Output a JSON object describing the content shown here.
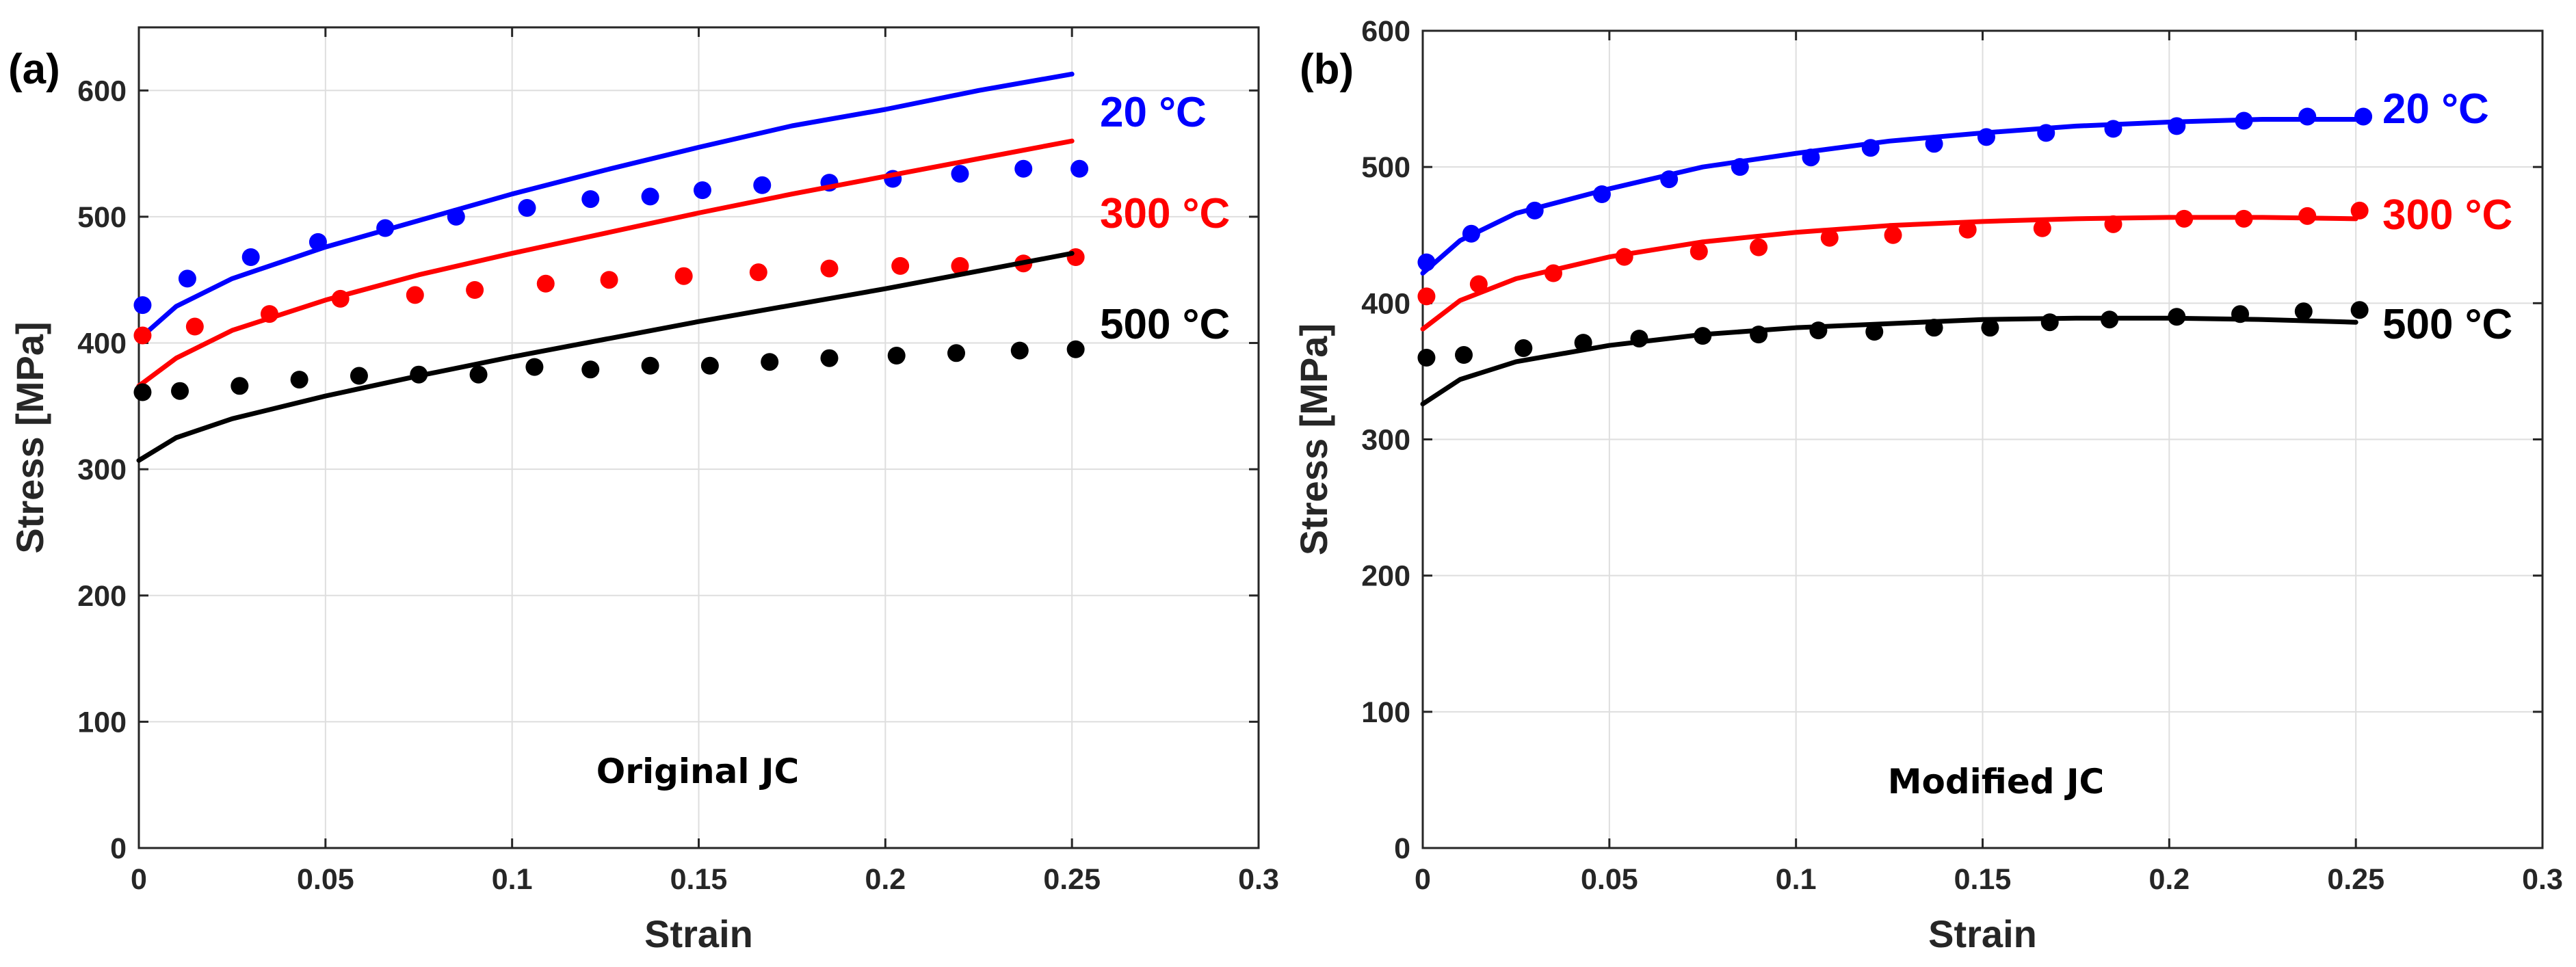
{
  "chart_data": [
    {
      "type": "scatter",
      "panel_label": "(a)",
      "annotation": "Original JC",
      "xlabel": "Strain",
      "ylabel": "Stress [MPa]",
      "xlim": [
        0,
        0.3
      ],
      "ylim": [
        0,
        650
      ],
      "xticks": [
        0,
        0.05,
        0.1,
        0.15,
        0.2,
        0.25,
        0.3
      ],
      "xtick_labels": [
        "0",
        "0.05",
        "0.1",
        "0.15",
        "0.2",
        "0.25",
        "0.3"
      ],
      "yticks": [
        0,
        100,
        200,
        300,
        400,
        500,
        600
      ],
      "ytick_labels": [
        "0",
        "100",
        "200",
        "300",
        "400",
        "500",
        "600"
      ],
      "grid": true,
      "series": [
        {
          "name": "20 °C",
          "color": "#0000ff",
          "exp_x": [
            0.001,
            0.013,
            0.03,
            0.048,
            0.066,
            0.085,
            0.104,
            0.121,
            0.137,
            0.151,
            0.167,
            0.185,
            0.202,
            0.22,
            0.237,
            0.252
          ],
          "exp_y": [
            430,
            451,
            468,
            480,
            491,
            500,
            507,
            514,
            516,
            521,
            525,
            527,
            530,
            534,
            538,
            538
          ],
          "model_x": [
            0,
            0.01,
            0.025,
            0.05,
            0.075,
            0.1,
            0.125,
            0.15,
            0.175,
            0.2,
            0.225,
            0.25
          ],
          "model_y": [
            403,
            429,
            451,
            476,
            497,
            518,
            537,
            555,
            572,
            585,
            600,
            613
          ]
        },
        {
          "name": "300 °C",
          "color": "#ff0000",
          "exp_x": [
            0.001,
            0.015,
            0.035,
            0.054,
            0.074,
            0.09,
            0.109,
            0.126,
            0.146,
            0.166,
            0.185,
            0.204,
            0.22,
            0.237,
            0.251
          ],
          "exp_y": [
            406,
            413,
            423,
            435,
            438,
            442,
            447,
            450,
            453,
            456,
            459,
            461,
            461,
            463,
            468
          ],
          "model_x": [
            0,
            0.01,
            0.025,
            0.05,
            0.075,
            0.1,
            0.125,
            0.15,
            0.175,
            0.2,
            0.225,
            0.25
          ],
          "model_y": [
            366,
            388,
            410,
            434,
            454,
            471,
            487,
            503,
            518,
            532,
            546,
            560
          ]
        },
        {
          "name": "500 °C",
          "color": "#000000",
          "exp_x": [
            0.001,
            0.011,
            0.027,
            0.043,
            0.059,
            0.075,
            0.091,
            0.106,
            0.121,
            0.137,
            0.153,
            0.169,
            0.185,
            0.203,
            0.219,
            0.236,
            0.251
          ],
          "exp_y": [
            361,
            362,
            366,
            371,
            374,
            375,
            375,
            381,
            379,
            382,
            382,
            385,
            388,
            390,
            392,
            394,
            395
          ],
          "model_x": [
            0,
            0.01,
            0.025,
            0.05,
            0.075,
            0.1,
            0.125,
            0.15,
            0.175,
            0.2,
            0.225,
            0.25
          ],
          "model_y": [
            307,
            325,
            340,
            358,
            374,
            389,
            403,
            417,
            430,
            443,
            457,
            471
          ]
        }
      ]
    },
    {
      "type": "scatter",
      "panel_label": "(b)",
      "annotation": "Modified JC",
      "xlabel": "Strain",
      "ylabel": "Stress [MPa]",
      "xlim": [
        0,
        0.3
      ],
      "ylim": [
        0,
        600
      ],
      "xticks": [
        0,
        0.05,
        0.1,
        0.15,
        0.2,
        0.25,
        0.3
      ],
      "xtick_labels": [
        "0",
        "0.05",
        "0.1",
        "0.15",
        "0.2",
        "0.25",
        "0.3"
      ],
      "yticks": [
        0,
        100,
        200,
        300,
        400,
        500,
        600
      ],
      "ytick_labels": [
        "0",
        "100",
        "200",
        "300",
        "400",
        "500",
        "600"
      ],
      "grid": true,
      "series": [
        {
          "name": "20 °C",
          "color": "#0000ff",
          "exp_x": [
            0.001,
            0.013,
            0.03,
            0.048,
            0.066,
            0.085,
            0.104,
            0.12,
            0.137,
            0.151,
            0.167,
            0.185,
            0.202,
            0.22,
            0.237,
            0.252
          ],
          "exp_y": [
            430,
            451,
            468,
            480,
            491,
            500,
            507,
            514,
            517,
            522,
            525,
            528,
            530,
            534,
            537,
            537
          ],
          "model_x": [
            0,
            0.01,
            0.025,
            0.05,
            0.075,
            0.1,
            0.125,
            0.15,
            0.175,
            0.2,
            0.225,
            0.25
          ],
          "model_y": [
            422,
            446,
            466,
            484,
            500,
            510,
            519,
            525,
            530,
            533,
            535,
            535
          ]
        },
        {
          "name": "300 °C",
          "color": "#ff0000",
          "exp_x": [
            0.001,
            0.015,
            0.035,
            0.054,
            0.074,
            0.09,
            0.109,
            0.126,
            0.146,
            0.166,
            0.185,
            0.204,
            0.22,
            0.237,
            0.251
          ],
          "exp_y": [
            405,
            414,
            422,
            434,
            438,
            441,
            448,
            450,
            454,
            455,
            458,
            462,
            462,
            464,
            468
          ],
          "model_x": [
            0,
            0.01,
            0.025,
            0.05,
            0.075,
            0.1,
            0.125,
            0.15,
            0.175,
            0.2,
            0.225,
            0.25
          ],
          "model_y": [
            381,
            402,
            418,
            434,
            445,
            452,
            457,
            460,
            462,
            463,
            463,
            462
          ]
        },
        {
          "name": "500 °C",
          "color": "#000000",
          "exp_x": [
            0.001,
            0.011,
            0.027,
            0.043,
            0.058,
            0.075,
            0.09,
            0.106,
            0.121,
            0.137,
            0.152,
            0.168,
            0.184,
            0.202,
            0.219,
            0.236,
            0.251
          ],
          "exp_y": [
            360,
            362,
            367,
            371,
            374,
            376,
            377,
            380,
            379,
            382,
            382,
            386,
            388,
            390,
            392,
            394,
            395
          ],
          "model_x": [
            0,
            0.01,
            0.025,
            0.05,
            0.075,
            0.1,
            0.125,
            0.15,
            0.175,
            0.2,
            0.225,
            0.25
          ],
          "model_y": [
            326,
            344,
            357,
            369,
            377,
            382,
            385,
            388,
            389,
            389,
            388,
            386
          ]
        }
      ]
    }
  ]
}
